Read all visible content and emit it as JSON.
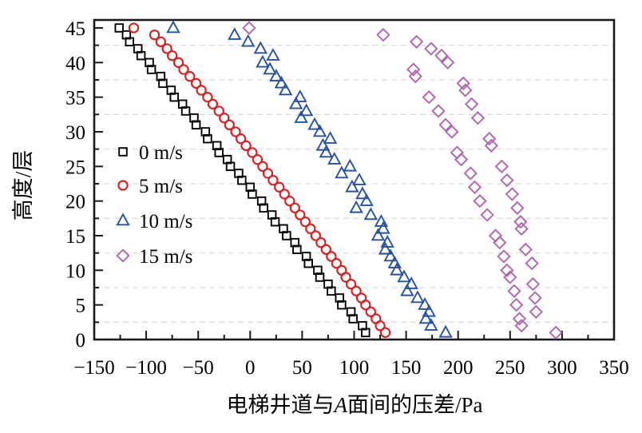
{
  "figure": {
    "background": "#ffffff",
    "axis_color": "#1a1a1a",
    "gridline_color": "#dcdcdc"
  },
  "chart_data": {
    "type": "scatter",
    "title": "",
    "xlabel": "电梯井道与A面间的压差/Pa",
    "xlabel_parts": [
      "电梯井道与",
      "A",
      "面间的压差/Pa"
    ],
    "ylabel": "高度/层",
    "xlim": [
      -150,
      350
    ],
    "ylim": [
      0,
      46.15
    ],
    "xticks": [
      -150,
      -100,
      -50,
      0,
      50,
      100,
      150,
      200,
      250,
      300,
      350
    ],
    "xtick_labels": [
      "−150",
      "−100",
      "−50",
      "0",
      "50",
      "100",
      "150",
      "200",
      "250",
      "300",
      "350"
    ],
    "x_minor_ticks": [
      -125,
      -75,
      -25,
      25,
      75,
      125,
      175,
      225,
      275,
      325
    ],
    "yticks": [
      0,
      5,
      10,
      15,
      20,
      25,
      30,
      35,
      40,
      45
    ],
    "ytick_labels": [
      "0",
      "5",
      "10",
      "15",
      "20",
      "25",
      "30",
      "35",
      "40",
      "45"
    ],
    "y_minor_ticks": [
      2.5,
      7.5,
      12.5,
      17.5,
      22.5,
      27.5,
      32.5,
      37.5,
      42.5
    ],
    "grid": "horizontal dashed lines at y minor ticks only",
    "legend_position": "upper-left-inside",
    "floors": [
      1,
      2,
      3,
      4,
      5,
      6,
      7,
      8,
      9,
      10,
      11,
      12,
      13,
      14,
      15,
      16,
      17,
      18,
      19,
      20,
      21,
      22,
      23,
      24,
      25,
      26,
      27,
      28,
      29,
      30,
      31,
      32,
      33,
      34,
      35,
      36,
      37,
      38,
      39,
      40,
      41,
      42,
      43,
      44,
      45
    ],
    "series": [
      {
        "name": "0 m/s",
        "marker": "square",
        "color": "#000000",
        "values": [
          111,
          108,
          99,
          97,
          88,
          86,
          78,
          75,
          67,
          65,
          56,
          54,
          45,
          43,
          35,
          32,
          24,
          21,
          13,
          11,
          2,
          0,
          -8,
          -11,
          -19,
          -22,
          -30,
          -32,
          -41,
          -43,
          -52,
          -54,
          -62,
          -65,
          -73,
          -76,
          -84,
          -86,
          -95,
          -97,
          -105,
          -108,
          -116,
          -119,
          -126
        ]
      },
      {
        "name": "5 m/s",
        "marker": "circle",
        "color": "#d81f1f",
        "values": [
          130,
          125,
          121,
          116,
          111,
          107,
          102,
          97,
          92,
          88,
          83,
          78,
          73,
          68,
          63,
          58,
          53,
          48,
          43,
          38,
          33,
          28,
          22,
          17,
          12,
          7,
          2,
          -4,
          -9,
          -14,
          -20,
          -25,
          -30,
          -36,
          -41,
          -47,
          -52,
          -58,
          -64,
          -69,
          -75,
          -80,
          -86,
          -92,
          -112
        ]
      },
      {
        "name": "10 m/s",
        "marker": "triangle",
        "color": "#2552a2",
        "values": [
          188,
          174,
          169,
          172,
          168,
          161,
          151,
          155,
          148,
          141,
          139,
          135,
          130,
          132,
          123,
          128,
          126,
          116,
          102,
          112,
          108,
          98,
          105,
          88,
          96,
          81,
          73,
          70,
          77,
          67,
          62,
          49,
          54,
          44,
          48,
          34,
          30,
          25,
          19,
          12,
          22,
          10,
          -2,
          -15,
          -74
        ]
      },
      {
        "name": "15 m/s",
        "marker": "diamond",
        "color": "#b164b0",
        "values": [
          294,
          261,
          259,
          275,
          256,
          274,
          254,
          272,
          250,
          247,
          271,
          244,
          265,
          240,
          236,
          261,
          260,
          228,
          257,
          221,
          252,
          216,
          247,
          212,
          242,
          203,
          199,
          232,
          230,
          194,
          188,
          219,
          181,
          213,
          172,
          207,
          205,
          159,
          157,
          190,
          184,
          174,
          160,
          128,
          -1
        ]
      }
    ]
  }
}
